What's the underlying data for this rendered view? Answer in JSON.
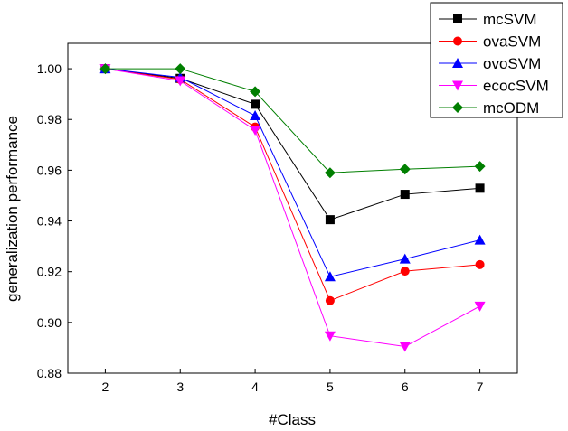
{
  "chart_data": {
    "type": "line",
    "title": "",
    "xlabel": "#Class",
    "ylabel": "generalization performance",
    "x": [
      2,
      3,
      4,
      5,
      6,
      7
    ],
    "xlim": [
      1.5,
      7.5
    ],
    "ylim": [
      0.88,
      1.01
    ],
    "xticks": [
      "2",
      "3",
      "4",
      "5",
      "6",
      "7"
    ],
    "yticks": [
      "0.88",
      "0.90",
      "0.92",
      "0.94",
      "0.96",
      "0.98",
      "1.00"
    ],
    "grid": false,
    "legend_position": "top-right",
    "series": [
      {
        "name": "mcSVM",
        "color": "#000000",
        "marker": "square",
        "values": [
          1.0,
          0.9962,
          0.986,
          0.9405,
          0.9505,
          0.9529
        ]
      },
      {
        "name": "ovaSVM",
        "color": "#ff0000",
        "marker": "circle",
        "values": [
          1.0,
          0.9958,
          0.977,
          0.9086,
          0.9202,
          0.9228
        ]
      },
      {
        "name": "ovoSVM",
        "color": "#0000ff",
        "marker": "triangle-up",
        "values": [
          1.0,
          0.9966,
          0.9815,
          0.918,
          0.925,
          0.9325
        ]
      },
      {
        "name": "ecocSVM",
        "color": "#ff00ff",
        "marker": "triangle-down",
        "values": [
          1.0,
          0.9952,
          0.9758,
          0.8947,
          0.8905,
          0.9064
        ]
      },
      {
        "name": "mcODM",
        "color": "#007f00",
        "marker": "diamond",
        "values": [
          1.0,
          1.0,
          0.991,
          0.959,
          0.9604,
          0.9615
        ]
      }
    ]
  }
}
